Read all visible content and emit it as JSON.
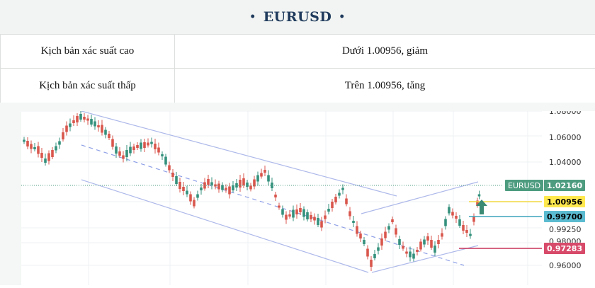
{
  "header": {
    "title": "EURUSD",
    "bullet": "•"
  },
  "scenarios": [
    {
      "label": "Kịch bản xác suất cao",
      "value": "Dưới 1.00956, giảm"
    },
    {
      "label": "Kịch bản xác suất thấp",
      "value": "Trên 1.00956, tăng"
    }
  ],
  "chart": {
    "y_ticks": [
      "1.08000",
      "1.06000",
      "1.04000",
      "0.99250",
      "0.98000",
      "0.96000"
    ],
    "price_tags": [
      {
        "label": "EURUSD",
        "value": "1.02160",
        "color": "#4e9c80",
        "text_color": "#ffffff"
      },
      {
        "value": "1.00956",
        "color": "#ffe94f",
        "text_color": "#000000"
      },
      {
        "value": "0.99700",
        "color": "#5bbbd0",
        "text_color": "#000000"
      },
      {
        "value": "0.97283",
        "color": "#d84a6a",
        "text_color": "#ffffff"
      }
    ],
    "colors": {
      "up": "#34917c",
      "down": "#d9564c",
      "channel": "#aeb9ea",
      "arrow": "#3b8a73"
    }
  }
}
